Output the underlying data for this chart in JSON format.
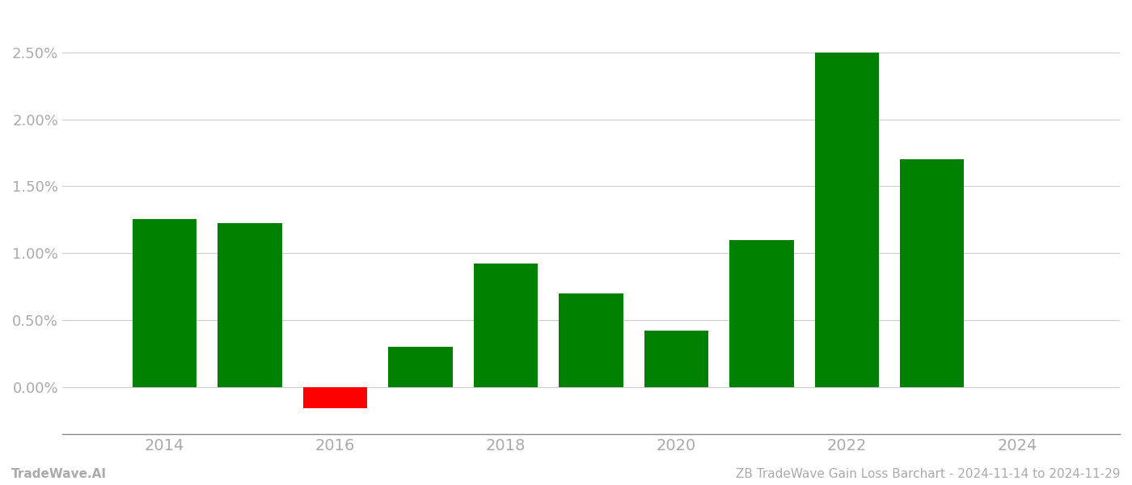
{
  "years": [
    2014,
    2015,
    2016,
    2017,
    2018,
    2019,
    2020,
    2021,
    2022,
    2023
  ],
  "values": [
    0.01253,
    0.01224,
    -0.00155,
    0.00305,
    0.00922,
    0.00698,
    0.00422,
    0.01098,
    0.025,
    0.017
  ],
  "bar_colors": [
    "#008000",
    "#008000",
    "#ff0000",
    "#008000",
    "#008000",
    "#008000",
    "#008000",
    "#008000",
    "#008000",
    "#008000"
  ],
  "xlabel": "",
  "ylabel": "",
  "ylim_min": -0.0035,
  "ylim_max": 0.028,
  "xlim_min": 2012.8,
  "xlim_max": 2025.2,
  "xtick_values": [
    2014,
    2016,
    2018,
    2020,
    2022,
    2024
  ],
  "footer_left": "TradeWave.AI",
  "footer_right": "ZB TradeWave Gain Loss Barchart - 2024-11-14 to 2024-11-29",
  "background_color": "#ffffff",
  "grid_color": "#cccccc",
  "tick_label_color": "#aaaaaa",
  "bar_width": 0.75,
  "footer_fontsize": 11
}
